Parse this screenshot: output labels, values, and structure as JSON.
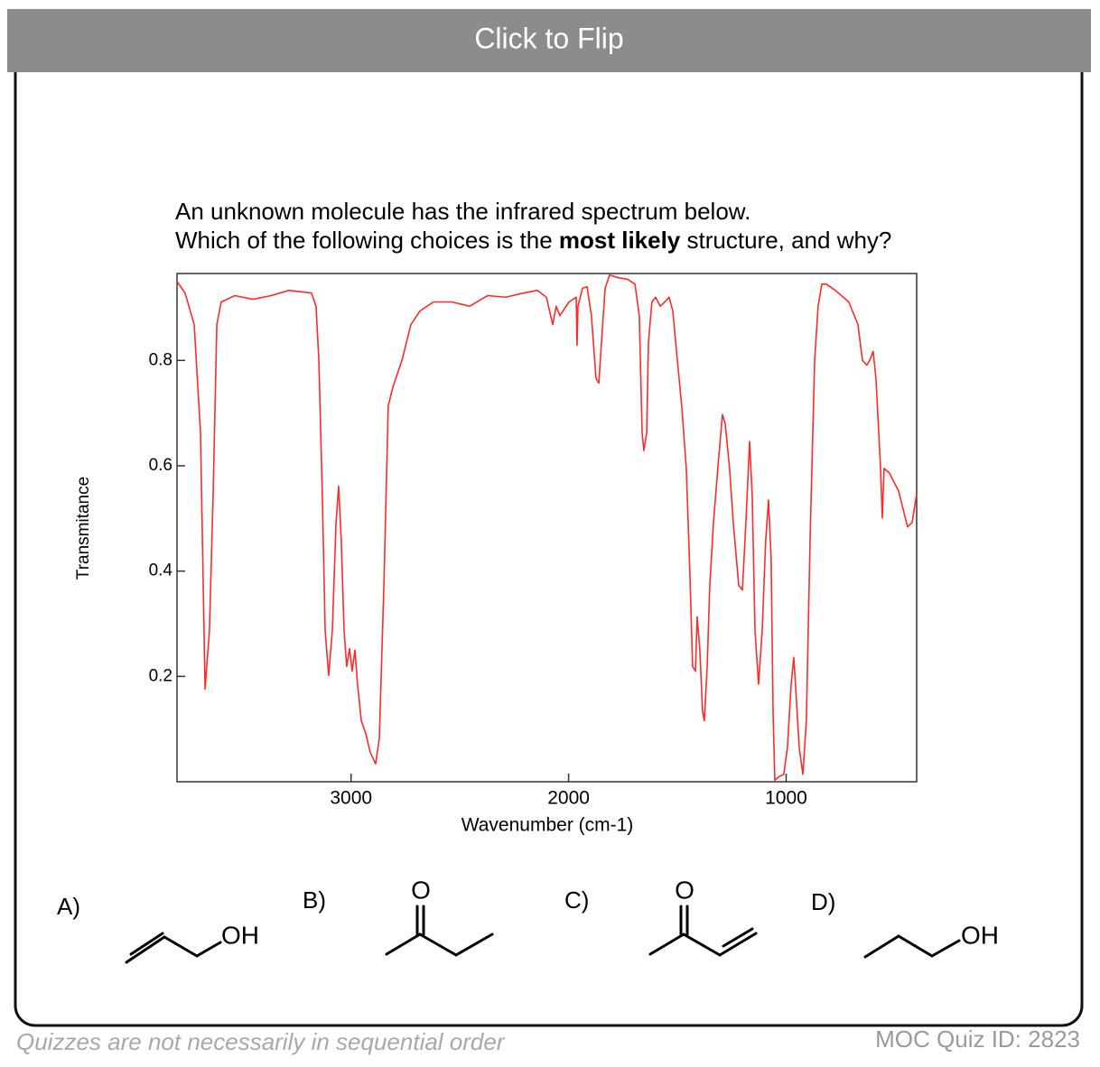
{
  "header": {
    "button": "Click to Flip"
  },
  "question": {
    "line1": "An unknown molecule has the infrared spectrum below.",
    "line2_before": "Which of the following choices is the ",
    "line2_bold": "most likely",
    "line2_after": " structure, and why?"
  },
  "chart_data": {
    "type": "line",
    "x_label": "Wavenumber (cm-1)",
    "y_label": "Transmitance",
    "color": "#ff2a2a",
    "xlim": [
      3800,
      400
    ],
    "ylim": [
      0,
      0.965
    ],
    "xticks": [
      3000,
      2000,
      1000
    ],
    "yticks": [
      0.2,
      0.4,
      0.6,
      0.8
    ],
    "x": [
      3800,
      3763,
      3721,
      3692,
      3671,
      3651,
      3634,
      3617,
      3597,
      3534,
      3451,
      3368,
      3285,
      3182,
      3161,
      3148,
      3132,
      3119,
      3103,
      3086,
      3069,
      3057,
      3045,
      3032,
      3020,
      3007,
      2995,
      2982,
      2970,
      2953,
      2932,
      2912,
      2887,
      2870,
      2849,
      2829,
      2808,
      2766,
      2725,
      2683,
      2621,
      2538,
      2455,
      2372,
      2289,
      2206,
      2144,
      2102,
      2073,
      2057,
      2040,
      1998,
      1965,
      1961,
      1957,
      1936,
      1915,
      1895,
      1874,
      1861,
      1849,
      1832,
      1812,
      1770,
      1729,
      1695,
      1675,
      1662,
      1654,
      1641,
      1633,
      1617,
      1600,
      1579,
      1558,
      1538,
      1521,
      1500,
      1480,
      1459,
      1442,
      1430,
      1417,
      1409,
      1397,
      1384,
      1376,
      1363,
      1351,
      1334,
      1314,
      1293,
      1280,
      1260,
      1243,
      1218,
      1201,
      1185,
      1168,
      1156,
      1143,
      1127,
      1110,
      1094,
      1081,
      1069,
      1060,
      1052,
      1031,
      1011,
      994,
      977,
      965,
      957,
      940,
      923,
      907,
      890,
      869,
      853,
      836,
      815,
      774,
      712,
      670,
      649,
      629,
      616,
      600,
      587,
      566,
      558,
      550,
      525,
      483,
      442,
      421,
      400
    ],
    "values": [
      0.95,
      0.928,
      0.868,
      0.663,
      0.176,
      0.287,
      0.544,
      0.868,
      0.911,
      0.923,
      0.916,
      0.923,
      0.933,
      0.928,
      0.903,
      0.8,
      0.544,
      0.287,
      0.202,
      0.287,
      0.492,
      0.561,
      0.458,
      0.287,
      0.219,
      0.253,
      0.21,
      0.25,
      0.185,
      0.116,
      0.091,
      0.056,
      0.034,
      0.082,
      0.373,
      0.714,
      0.749,
      0.8,
      0.868,
      0.894,
      0.911,
      0.911,
      0.903,
      0.923,
      0.92,
      0.928,
      0.933,
      0.92,
      0.868,
      0.903,
      0.885,
      0.911,
      0.92,
      0.829,
      0.903,
      0.937,
      0.94,
      0.885,
      0.766,
      0.757,
      0.834,
      0.937,
      0.962,
      0.957,
      0.954,
      0.945,
      0.885,
      0.663,
      0.629,
      0.663,
      0.834,
      0.911,
      0.92,
      0.903,
      0.911,
      0.92,
      0.894,
      0.8,
      0.714,
      0.595,
      0.39,
      0.219,
      0.21,
      0.313,
      0.253,
      0.133,
      0.116,
      0.219,
      0.373,
      0.492,
      0.595,
      0.697,
      0.68,
      0.595,
      0.492,
      0.373,
      0.364,
      0.492,
      0.646,
      0.544,
      0.287,
      0.185,
      0.287,
      0.458,
      0.535,
      0.424,
      0.133,
      0.003,
      0.01,
      0.014,
      0.065,
      0.185,
      0.236,
      0.185,
      0.065,
      0.014,
      0.116,
      0.458,
      0.8,
      0.903,
      0.945,
      0.945,
      0.933,
      0.911,
      0.868,
      0.8,
      0.791,
      0.8,
      0.817,
      0.766,
      0.595,
      0.501,
      0.595,
      0.586,
      0.552,
      0.484,
      0.492,
      0.547
    ]
  },
  "choices": [
    {
      "label": "A)",
      "atom": "OH"
    },
    {
      "label": "B)",
      "atom": "O"
    },
    {
      "label": "C)",
      "atom": "O"
    },
    {
      "label": "D)",
      "atom": "OH"
    }
  ],
  "footer": {
    "note": "Quizzes are not necessarily in sequential order",
    "quiz_id": "MOC Quiz ID: 2823"
  }
}
